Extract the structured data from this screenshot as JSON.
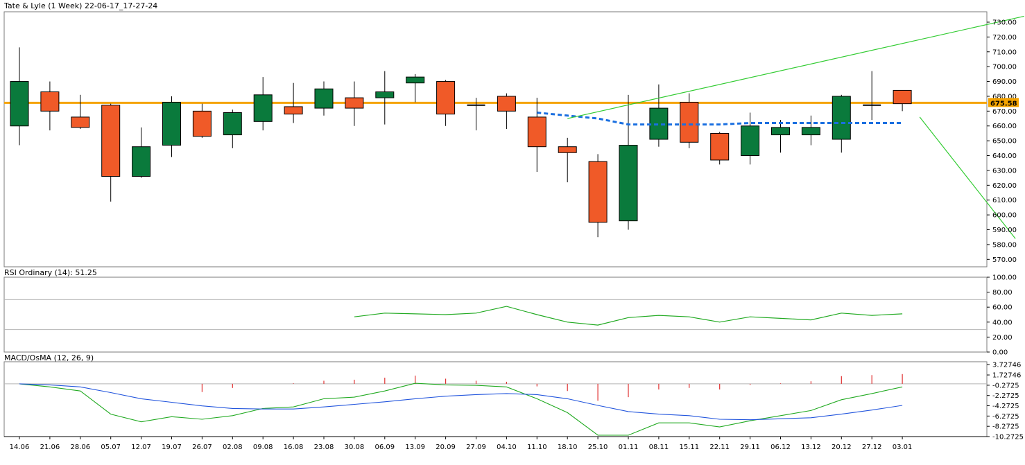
{
  "chart_data": [
    {
      "type": "candlestick",
      "title": "Tate & Lyle (1 Week) 22-06-17_17-27-24",
      "ylim": [
        565,
        737
      ],
      "y_ticks": [
        "570.00",
        "580.00",
        "590.00",
        "600.00",
        "610.00",
        "620.00",
        "630.00",
        "640.00",
        "650.00",
        "660.00",
        "670.00",
        "680.00",
        "690.00",
        "700.00",
        "710.00",
        "720.00",
        "730.00"
      ],
      "last_price_label": "675.58",
      "last_price": 675.58,
      "colors": {
        "up": "#0a7a3c",
        "down": "#f05a28",
        "level": "#f5a300",
        "trend": "#33cc33",
        "ma": "#1a6fe0"
      },
      "candles": [
        {
          "x": "14.06",
          "o": 660,
          "h": 713,
          "l": 647,
          "c": 690
        },
        {
          "x": "21.06",
          "o": 683,
          "h": 690,
          "l": 657,
          "c": 670
        },
        {
          "x": "28.06",
          "o": 666,
          "h": 681,
          "l": 658,
          "c": 659
        },
        {
          "x": "05.07",
          "o": 674,
          "h": 675,
          "l": 609,
          "c": 626
        },
        {
          "x": "12.07",
          "o": 626,
          "h": 659,
          "l": 625,
          "c": 646
        },
        {
          "x": "19.07",
          "o": 647,
          "h": 680,
          "l": 639,
          "c": 676
        },
        {
          "x": "26.07",
          "o": 670,
          "h": 675,
          "l": 652,
          "c": 653
        },
        {
          "x": "02.08",
          "o": 654,
          "h": 671,
          "l": 645,
          "c": 669
        },
        {
          "x": "09.08",
          "o": 663,
          "h": 693,
          "l": 657,
          "c": 681
        },
        {
          "x": "16.08",
          "o": 673,
          "h": 689,
          "l": 662,
          "c": 668
        },
        {
          "x": "23.08",
          "o": 672,
          "h": 690,
          "l": 667,
          "c": 685
        },
        {
          "x": "30.08",
          "o": 679,
          "h": 690,
          "l": 660,
          "c": 672
        },
        {
          "x": "06.09",
          "o": 679,
          "h": 697,
          "l": 661,
          "c": 683
        },
        {
          "x": "13.09",
          "o": 689,
          "h": 695,
          "l": 676,
          "c": 693
        },
        {
          "x": "20.09",
          "o": 690,
          "h": 691,
          "l": 660,
          "c": 668
        },
        {
          "x": "27.09",
          "o": 674,
          "h": 679,
          "l": 657,
          "c": 674
        },
        {
          "x": "04.10",
          "o": 680,
          "h": 682,
          "l": 658,
          "c": 670
        },
        {
          "x": "11.10",
          "o": 666,
          "h": 679,
          "l": 629,
          "c": 646
        },
        {
          "x": "18.10",
          "o": 646,
          "h": 652,
          "l": 622,
          "c": 642
        },
        {
          "x": "25.10",
          "o": 636,
          "h": 641,
          "l": 585,
          "c": 595
        },
        {
          "x": "01.11",
          "o": 596,
          "h": 681,
          "l": 590,
          "c": 647
        },
        {
          "x": "08.11",
          "o": 651,
          "h": 688,
          "l": 646,
          "c": 672
        },
        {
          "x": "15.11",
          "o": 676,
          "h": 682,
          "l": 645,
          "c": 649
        },
        {
          "x": "22.11",
          "o": 655,
          "h": 656,
          "l": 634,
          "c": 637
        },
        {
          "x": "29.11",
          "o": 640,
          "h": 669,
          "l": 634,
          "c": 660
        },
        {
          "x": "06.12",
          "o": 654,
          "h": 664,
          "l": 642,
          "c": 659
        },
        {
          "x": "13.12",
          "o": 654,
          "h": 667,
          "l": 647,
          "c": 659
        },
        {
          "x": "20.12",
          "o": 651,
          "h": 681,
          "l": 642,
          "c": 680
        },
        {
          "x": "27.12",
          "o": 674,
          "h": 697,
          "l": 664,
          "c": 674
        },
        {
          "x": "03.01",
          "o": 684,
          "h": 684,
          "l": 670,
          "c": 675
        }
      ],
      "level_line": 675.58,
      "moving_average": [
        {
          "x": "11.10",
          "y": 669
        },
        {
          "x": "18.10",
          "y": 667
        },
        {
          "x": "25.10",
          "y": 665
        },
        {
          "x": "01.11",
          "y": 661
        },
        {
          "x": "08.11",
          "y": 661
        },
        {
          "x": "15.11",
          "y": 661
        },
        {
          "x": "22.11",
          "y": 661
        },
        {
          "x": "29.11",
          "y": 662
        },
        {
          "x": "06.12",
          "y": 662
        },
        {
          "x": "13.12",
          "y": 662
        },
        {
          "x": "20.12",
          "y": 662
        },
        {
          "x": "27.12",
          "y": 662
        },
        {
          "x": "03.01",
          "y": 662
        }
      ],
      "trend_lines": [
        {
          "from": {
            "x": "18.10",
            "y": 665
          },
          "to": {
            "x": "28.12",
            "y": 734
          }
        },
        {
          "from": {
            "x": "26.10",
            "y": 584
          },
          "to": {
            "x": "04.01",
            "y": 666
          }
        }
      ]
    },
    {
      "type": "line",
      "title": "RSI Ordinary (14): 51.25",
      "ylim": [
        0,
        100
      ],
      "y_ticks": [
        "0.00",
        "20.00",
        "40.00",
        "60.00",
        "80.00",
        "100.00"
      ],
      "reference_levels": [
        30,
        70
      ],
      "series": [
        {
          "color": "#22aa22",
          "points": [
            {
              "x": "30.08",
              "y": 47
            },
            {
              "x": "06.09",
              "y": 52
            },
            {
              "x": "13.09",
              "y": 51
            },
            {
              "x": "20.09",
              "y": 50
            },
            {
              "x": "27.09",
              "y": 52
            },
            {
              "x": "04.10",
              "y": 61
            },
            {
              "x": "11.10",
              "y": 50
            },
            {
              "x": "18.10",
              "y": 40
            },
            {
              "x": "25.10",
              "y": 36
            },
            {
              "x": "01.11",
              "y": 46
            },
            {
              "x": "08.11",
              "y": 49
            },
            {
              "x": "15.11",
              "y": 47
            },
            {
              "x": "22.11",
              "y": 40
            },
            {
              "x": "29.11",
              "y": 47
            },
            {
              "x": "06.12",
              "y": 45
            },
            {
              "x": "13.12",
              "y": 43
            },
            {
              "x": "20.12",
              "y": 52
            },
            {
              "x": "27.12",
              "y": 49
            },
            {
              "x": "03.01",
              "y": 51
            }
          ]
        }
      ]
    },
    {
      "type": "bar+line",
      "title": "MACD/OsMA (12, 26, 9)",
      "ylim": [
        -10.2725,
        4.3
      ],
      "y_ticks": [
        "3.72746",
        "1.72746",
        "-0.2725",
        "-2.2725",
        "-4.2725",
        "-6.2725",
        "-8.2725",
        "-10.2725"
      ],
      "histogram": [
        {
          "x": "26.07",
          "y": -1.6
        },
        {
          "x": "02.08",
          "y": -0.8
        },
        {
          "x": "16.08",
          "y": 0.1
        },
        {
          "x": "23.08",
          "y": 0.6
        },
        {
          "x": "30.08",
          "y": 0.8
        },
        {
          "x": "06.09",
          "y": 1.2
        },
        {
          "x": "13.09",
          "y": 1.6
        },
        {
          "x": "20.09",
          "y": 1.0
        },
        {
          "x": "27.09",
          "y": 0.6
        },
        {
          "x": "04.10",
          "y": 0.4
        },
        {
          "x": "11.10",
          "y": -0.5
        },
        {
          "x": "18.10",
          "y": -1.4
        },
        {
          "x": "25.10",
          "y": -3.3
        },
        {
          "x": "01.11",
          "y": -2.6
        },
        {
          "x": "08.11",
          "y": -1.1
        },
        {
          "x": "15.11",
          "y": -0.8
        },
        {
          "x": "22.11",
          "y": -1.1
        },
        {
          "x": "29.11",
          "y": -0.2
        },
        {
          "x": "06.12",
          "y": 0.1
        },
        {
          "x": "13.12",
          "y": 0.5
        },
        {
          "x": "20.12",
          "y": 1.5
        },
        {
          "x": "27.12",
          "y": 1.7
        },
        {
          "x": "03.01",
          "y": 1.9
        }
      ],
      "series": [
        {
          "color": "#22aa22",
          "points": [
            {
              "x": "14.06",
              "y": 0.0
            },
            {
              "x": "21.06",
              "y": -0.6
            },
            {
              "x": "28.06",
              "y": -1.4
            },
            {
              "x": "05.07",
              "y": -5.9
            },
            {
              "x": "12.07",
              "y": -7.4
            },
            {
              "x": "19.07",
              "y": -6.4
            },
            {
              "x": "26.07",
              "y": -6.9
            },
            {
              "x": "02.08",
              "y": -6.2
            },
            {
              "x": "09.08",
              "y": -4.8
            },
            {
              "x": "16.08",
              "y": -4.5
            },
            {
              "x": "23.08",
              "y": -2.9
            },
            {
              "x": "30.08",
              "y": -2.6
            },
            {
              "x": "06.09",
              "y": -1.4
            },
            {
              "x": "13.09",
              "y": 0.1
            },
            {
              "x": "20.09",
              "y": -0.2
            },
            {
              "x": "27.09",
              "y": -0.3
            },
            {
              "x": "04.10",
              "y": -0.6
            },
            {
              "x": "11.10",
              "y": -2.9
            },
            {
              "x": "18.10",
              "y": -5.6
            },
            {
              "x": "25.10",
              "y": -10.0
            },
            {
              "x": "01.11",
              "y": -10.0
            },
            {
              "x": "08.11",
              "y": -7.6
            },
            {
              "x": "15.11",
              "y": -7.6
            },
            {
              "x": "22.11",
              "y": -8.4
            },
            {
              "x": "29.11",
              "y": -7.2
            },
            {
              "x": "06.12",
              "y": -6.2
            },
            {
              "x": "13.12",
              "y": -5.2
            },
            {
              "x": "20.12",
              "y": -3.1
            },
            {
              "x": "27.12",
              "y": -1.9
            },
            {
              "x": "03.01",
              "y": -0.6
            }
          ]
        },
        {
          "color": "#2255dd",
          "points": [
            {
              "x": "14.06",
              "y": 0.0
            },
            {
              "x": "21.06",
              "y": -0.2
            },
            {
              "x": "28.06",
              "y": -0.6
            },
            {
              "x": "05.07",
              "y": -1.7
            },
            {
              "x": "12.07",
              "y": -2.9
            },
            {
              "x": "19.07",
              "y": -3.6
            },
            {
              "x": "26.07",
              "y": -4.3
            },
            {
              "x": "02.08",
              "y": -4.8
            },
            {
              "x": "09.08",
              "y": -4.9
            },
            {
              "x": "16.08",
              "y": -4.9
            },
            {
              "x": "23.08",
              "y": -4.5
            },
            {
              "x": "30.08",
              "y": -4.0
            },
            {
              "x": "06.09",
              "y": -3.5
            },
            {
              "x": "13.09",
              "y": -2.9
            },
            {
              "x": "20.09",
              "y": -2.4
            },
            {
              "x": "27.09",
              "y": -2.1
            },
            {
              "x": "04.10",
              "y": -1.9
            },
            {
              "x": "11.10",
              "y": -2.1
            },
            {
              "x": "18.10",
              "y": -2.9
            },
            {
              "x": "25.10",
              "y": -4.2
            },
            {
              "x": "01.11",
              "y": -5.4
            },
            {
              "x": "08.11",
              "y": -5.9
            },
            {
              "x": "15.11",
              "y": -6.2
            },
            {
              "x": "22.11",
              "y": -6.9
            },
            {
              "x": "29.11",
              "y": -7.0
            },
            {
              "x": "06.12",
              "y": -6.8
            },
            {
              "x": "13.12",
              "y": -6.6
            },
            {
              "x": "20.12",
              "y": -5.9
            },
            {
              "x": "27.12",
              "y": -5.1
            },
            {
              "x": "03.01",
              "y": -4.2
            }
          ]
        }
      ]
    }
  ],
  "x_labels": [
    "14.06",
    "21.06",
    "28.06",
    "05.07",
    "12.07",
    "19.07",
    "26.07",
    "02.08",
    "09.08",
    "16.08",
    "23.08",
    "30.08",
    "06.09",
    "13.09",
    "20.09",
    "27.09",
    "04.10",
    "11.10",
    "18.10",
    "25.10",
    "01.11",
    "08.11",
    "15.11",
    "22.11",
    "29.11",
    "06.12",
    "13.12",
    "20.12",
    "27.12",
    "03.01"
  ]
}
